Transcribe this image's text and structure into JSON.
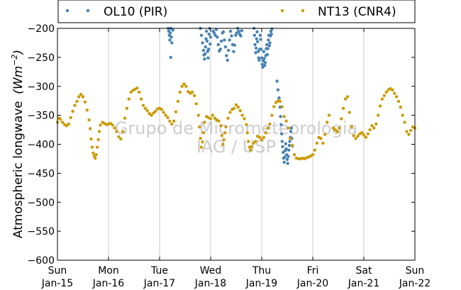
{
  "chart_data": {
    "type": "scatter",
    "title": "",
    "ylabel": "Atmospheric longwave",
    "ylabel_unit": "(Wm^-2)",
    "ylim": [
      -600,
      -200
    ],
    "yticks": [
      -200,
      -250,
      -300,
      -350,
      -400,
      -450,
      -500,
      -550,
      -600
    ],
    "ytick_labels": [
      "−200",
      "−250",
      "−300",
      "−350",
      "−400",
      "−450",
      "−500",
      "−550",
      "−600"
    ],
    "xlim": [
      0,
      7
    ],
    "xticks": [
      0,
      1,
      2,
      3,
      4,
      5,
      6,
      7
    ],
    "xtick_labels": [
      [
        "Sun",
        "Jan-15"
      ],
      [
        "Mon",
        "Jan-16"
      ],
      [
        "Tue",
        "Jan-17"
      ],
      [
        "Wed",
        "Jan-18"
      ],
      [
        "Thu",
        "Jan-19"
      ],
      [
        "Fri",
        "Jan-20"
      ],
      [
        "Sat",
        "Jan-21"
      ],
      [
        "Sun",
        "Jan-22"
      ]
    ],
    "grid": "x-only",
    "legend": "top, above plot",
    "watermark": [
      "Grupo de Micrometeorologia",
      "IAG / USP"
    ],
    "series": [
      {
        "name": "OL10 (PIR)",
        "color": "#4682b4",
        "points": [
          [
            2.17,
            -200
          ],
          [
            2.18,
            -205
          ],
          [
            2.19,
            -212
          ],
          [
            2.2,
            -220
          ],
          [
            2.21,
            -208
          ],
          [
            2.22,
            -200
          ],
          [
            2.23,
            -215
          ],
          [
            2.24,
            -225
          ],
          [
            2.22,
            -250
          ],
          [
            2.26,
            -203
          ],
          [
            2.8,
            -200
          ],
          [
            2.82,
            -212
          ],
          [
            2.84,
            -225
          ],
          [
            2.86,
            -238
          ],
          [
            2.87,
            -246
          ],
          [
            2.88,
            -253
          ],
          [
            2.89,
            -244
          ],
          [
            2.9,
            -232
          ],
          [
            2.91,
            -218
          ],
          [
            2.92,
            -205
          ],
          [
            2.93,
            -222
          ],
          [
            2.94,
            -240
          ],
          [
            2.95,
            -251
          ],
          [
            2.96,
            -236
          ],
          [
            2.97,
            -210
          ],
          [
            2.98,
            -200
          ],
          [
            2.99,
            -227
          ],
          [
            3.0,
            -215
          ],
          [
            3.05,
            -205
          ],
          [
            3.07,
            -208
          ],
          [
            3.09,
            -212
          ],
          [
            3.11,
            -202
          ],
          [
            3.13,
            -215
          ],
          [
            3.15,
            -228
          ],
          [
            3.17,
            -239
          ],
          [
            3.19,
            -236
          ],
          [
            3.21,
            -222
          ],
          [
            3.23,
            -208
          ],
          [
            3.25,
            -206
          ],
          [
            3.27,
            -220
          ],
          [
            3.29,
            -232
          ],
          [
            3.31,
            -247
          ],
          [
            3.33,
            -255
          ],
          [
            3.35,
            -238
          ],
          [
            3.37,
            -220
          ],
          [
            3.39,
            -205
          ],
          [
            3.41,
            -213
          ],
          [
            3.43,
            -228
          ],
          [
            3.45,
            -240
          ],
          [
            3.47,
            -229
          ],
          [
            3.49,
            -212
          ],
          [
            3.51,
            -208
          ],
          [
            3.53,
            -200
          ],
          [
            3.55,
            -205
          ],
          [
            3.57,
            -210
          ],
          [
            3.59,
            -213
          ],
          [
            3.61,
            -204
          ],
          [
            3.85,
            -200
          ],
          [
            3.86,
            -212
          ],
          [
            3.87,
            -228
          ],
          [
            3.88,
            -242
          ],
          [
            3.89,
            -234
          ],
          [
            3.9,
            -218
          ],
          [
            3.91,
            -206
          ],
          [
            3.92,
            -223
          ],
          [
            3.93,
            -240
          ],
          [
            3.94,
            -251
          ],
          [
            3.95,
            -255
          ],
          [
            3.96,
            -236
          ],
          [
            3.97,
            -212
          ],
          [
            3.98,
            -219
          ],
          [
            3.99,
            -236
          ],
          [
            4.0,
            -251
          ],
          [
            4.01,
            -262
          ],
          [
            4.02,
            -267
          ],
          [
            4.03,
            -256
          ],
          [
            4.04,
            -240
          ],
          [
            4.05,
            -252
          ],
          [
            4.06,
            -264
          ],
          [
            4.07,
            -259
          ],
          [
            4.08,
            -247
          ],
          [
            4.09,
            -235
          ],
          [
            4.1,
            -228
          ],
          [
            4.11,
            -245
          ],
          [
            4.12,
            -235
          ],
          [
            4.13,
            -220
          ],
          [
            4.14,
            -212
          ],
          [
            4.15,
            -230
          ],
          [
            4.16,
            -225
          ],
          [
            4.17,
            -213
          ],
          [
            4.18,
            -205
          ],
          [
            4.19,
            -210
          ],
          [
            4.2,
            -201
          ],
          [
            4.3,
            -291
          ],
          [
            4.32,
            -306
          ],
          [
            4.34,
            -320
          ],
          [
            4.36,
            -336
          ],
          [
            4.37,
            -352
          ],
          [
            4.38,
            -366
          ],
          [
            4.39,
            -382
          ],
          [
            4.4,
            -395
          ],
          [
            4.41,
            -404
          ],
          [
            4.42,
            -414
          ],
          [
            4.43,
            -424
          ],
          [
            4.44,
            -431
          ],
          [
            4.45,
            -422
          ],
          [
            4.46,
            -411
          ],
          [
            4.47,
            -399
          ],
          [
            4.48,
            -408
          ],
          [
            4.49,
            -418
          ],
          [
            4.5,
            -426
          ],
          [
            4.51,
            -433
          ],
          [
            4.52,
            -421
          ],
          [
            4.53,
            -410
          ],
          [
            4.54,
            -402
          ],
          [
            4.55,
            -395
          ],
          [
            4.56,
            -388
          ],
          [
            4.57,
            -378
          ],
          [
            4.58,
            -372
          ],
          [
            4.59,
            -390
          ],
          [
            4.6,
            -403
          ]
        ]
      },
      {
        "name": "NT13 (CNR4)",
        "color": "#cc9a06",
        "points": [
          [
            0.0,
            -362
          ],
          [
            0.03,
            -355
          ],
          [
            0.06,
            -357
          ],
          [
            0.1,
            -362
          ],
          [
            0.14,
            -366
          ],
          [
            0.18,
            -368
          ],
          [
            0.22,
            -365
          ],
          [
            0.26,
            -354
          ],
          [
            0.3,
            -343
          ],
          [
            0.34,
            -333
          ],
          [
            0.38,
            -326
          ],
          [
            0.42,
            -318
          ],
          [
            0.46,
            -314
          ],
          [
            0.5,
            -318
          ],
          [
            0.54,
            -327
          ],
          [
            0.58,
            -341
          ],
          [
            0.62,
            -358
          ],
          [
            0.64,
            -373
          ],
          [
            0.66,
            -391
          ],
          [
            0.68,
            -405
          ],
          [
            0.7,
            -415
          ],
          [
            0.72,
            -420
          ],
          [
            0.74,
            -424
          ],
          [
            0.76,
            -418
          ],
          [
            0.78,
            -405
          ],
          [
            0.8,
            -392
          ],
          [
            0.82,
            -378
          ],
          [
            0.84,
            -367
          ],
          [
            0.88,
            -362
          ],
          [
            0.92,
            -364
          ],
          [
            0.96,
            -366
          ],
          [
            1.0,
            -365
          ],
          [
            1.04,
            -364
          ],
          [
            1.08,
            -367
          ],
          [
            1.12,
            -372
          ],
          [
            1.16,
            -378
          ],
          [
            1.2,
            -387
          ],
          [
            1.24,
            -391
          ],
          [
            1.28,
            -378
          ],
          [
            1.32,
            -355
          ],
          [
            1.36,
            -338
          ],
          [
            1.4,
            -322
          ],
          [
            1.44,
            -310
          ],
          [
            1.48,
            -307
          ],
          [
            1.52,
            -305
          ],
          [
            1.56,
            -303
          ],
          [
            1.6,
            -310
          ],
          [
            1.64,
            -322
          ],
          [
            1.68,
            -333
          ],
          [
            1.72,
            -338
          ],
          [
            1.76,
            -342
          ],
          [
            1.8,
            -347
          ],
          [
            1.84,
            -350
          ],
          [
            1.88,
            -346
          ],
          [
            1.92,
            -343
          ],
          [
            1.96,
            -339
          ],
          [
            2.0,
            -338
          ],
          [
            2.04,
            -340
          ],
          [
            2.08,
            -345
          ],
          [
            2.12,
            -350
          ],
          [
            2.16,
            -354
          ],
          [
            2.2,
            -360
          ],
          [
            2.24,
            -365
          ],
          [
            2.28,
            -360
          ],
          [
            2.32,
            -344
          ],
          [
            2.36,
            -326
          ],
          [
            2.4,
            -310
          ],
          [
            2.44,
            -300
          ],
          [
            2.48,
            -296
          ],
          [
            2.52,
            -300
          ],
          [
            2.56,
            -309
          ],
          [
            2.6,
            -312
          ],
          [
            2.64,
            -310
          ],
          [
            2.68,
            -316
          ],
          [
            2.72,
            -330
          ],
          [
            2.76,
            -350
          ],
          [
            2.78,
            -370
          ],
          [
            2.8,
            -390
          ],
          [
            2.82,
            -405
          ],
          [
            2.84,
            -396
          ],
          [
            2.86,
            -380
          ],
          [
            2.88,
            -362
          ],
          [
            2.92,
            -352
          ],
          [
            2.96,
            -354
          ],
          [
            3.0,
            -356
          ],
          [
            3.04,
            -350
          ],
          [
            3.08,
            -355
          ],
          [
            3.12,
            -358
          ],
          [
            3.16,
            -360
          ],
          [
            3.2,
            -368
          ],
          [
            3.22,
            -385
          ],
          [
            3.24,
            -400
          ],
          [
            3.26,
            -392
          ],
          [
            3.28,
            -380
          ],
          [
            3.3,
            -370
          ],
          [
            3.34,
            -355
          ],
          [
            3.38,
            -345
          ],
          [
            3.42,
            -340
          ],
          [
            3.46,
            -338
          ],
          [
            3.5,
            -332
          ],
          [
            3.54,
            -336
          ],
          [
            3.58,
            -342
          ],
          [
            3.62,
            -350
          ],
          [
            3.66,
            -356
          ],
          [
            3.7,
            -366
          ],
          [
            3.72,
            -380
          ],
          [
            3.74,
            -395
          ],
          [
            3.76,
            -405
          ],
          [
            3.78,
            -410
          ],
          [
            3.8,
            -404
          ],
          [
            3.84,
            -398
          ],
          [
            3.88,
            -395
          ],
          [
            3.92,
            -386
          ],
          [
            3.96,
            -388
          ],
          [
            4.0,
            -392
          ],
          [
            4.04,
            -388
          ],
          [
            4.08,
            -380
          ],
          [
            4.12,
            -372
          ],
          [
            4.16,
            -365
          ],
          [
            4.2,
            -350
          ],
          [
            4.24,
            -335
          ],
          [
            4.28,
            -328
          ],
          [
            4.32,
            -325
          ],
          [
            4.36,
            -326
          ],
          [
            4.4,
            -335
          ],
          [
            4.44,
            -352
          ],
          [
            4.48,
            -360
          ],
          [
            4.52,
            -372
          ],
          [
            4.56,
            -390
          ],
          [
            4.6,
            -402
          ],
          [
            4.64,
            -418
          ],
          [
            4.68,
            -424
          ],
          [
            4.72,
            -425
          ],
          [
            4.76,
            -425
          ],
          [
            4.8,
            -424
          ],
          [
            4.84,
            -425
          ],
          [
            4.88,
            -423
          ],
          [
            4.92,
            -422
          ],
          [
            4.96,
            -420
          ],
          [
            5.0,
            -418
          ],
          [
            5.04,
            -410
          ],
          [
            5.08,
            -398
          ],
          [
            5.12,
            -388
          ],
          [
            5.16,
            -390
          ],
          [
            5.2,
            -398
          ],
          [
            5.24,
            -383
          ],
          [
            5.28,
            -362
          ],
          [
            5.32,
            -350
          ],
          [
            5.4,
            -372
          ],
          [
            5.44,
            -375
          ],
          [
            5.48,
            -378
          ],
          [
            5.52,
            -372
          ],
          [
            5.56,
            -356
          ],
          [
            5.6,
            -338
          ],
          [
            5.64,
            -322
          ],
          [
            5.68,
            -318
          ],
          [
            5.72,
            -345
          ],
          [
            5.76,
            -370
          ],
          [
            5.8,
            -385
          ],
          [
            5.84,
            -390
          ],
          [
            5.88,
            -386
          ],
          [
            5.92,
            -382
          ],
          [
            5.96,
            -380
          ],
          [
            6.0,
            -384
          ],
          [
            6.04,
            -388
          ],
          [
            6.08,
            -382
          ],
          [
            6.12,
            -375
          ],
          [
            6.16,
            -368
          ],
          [
            6.2,
            -372
          ],
          [
            6.24,
            -365
          ],
          [
            6.28,
            -350
          ],
          [
            6.32,
            -334
          ],
          [
            6.36,
            -322
          ],
          [
            6.4,
            -316
          ],
          [
            6.44,
            -310
          ],
          [
            6.48,
            -306
          ],
          [
            6.52,
            -304
          ],
          [
            6.56,
            -306
          ],
          [
            6.6,
            -312
          ],
          [
            6.64,
            -318
          ],
          [
            6.68,
            -326
          ],
          [
            6.72,
            -336
          ],
          [
            6.76,
            -350
          ],
          [
            6.8,
            -362
          ],
          [
            6.84,
            -378
          ],
          [
            6.88,
            -383
          ],
          [
            6.92,
            -376
          ],
          [
            6.96,
            -370
          ],
          [
            7.0,
            -372
          ]
        ]
      }
    ]
  }
}
